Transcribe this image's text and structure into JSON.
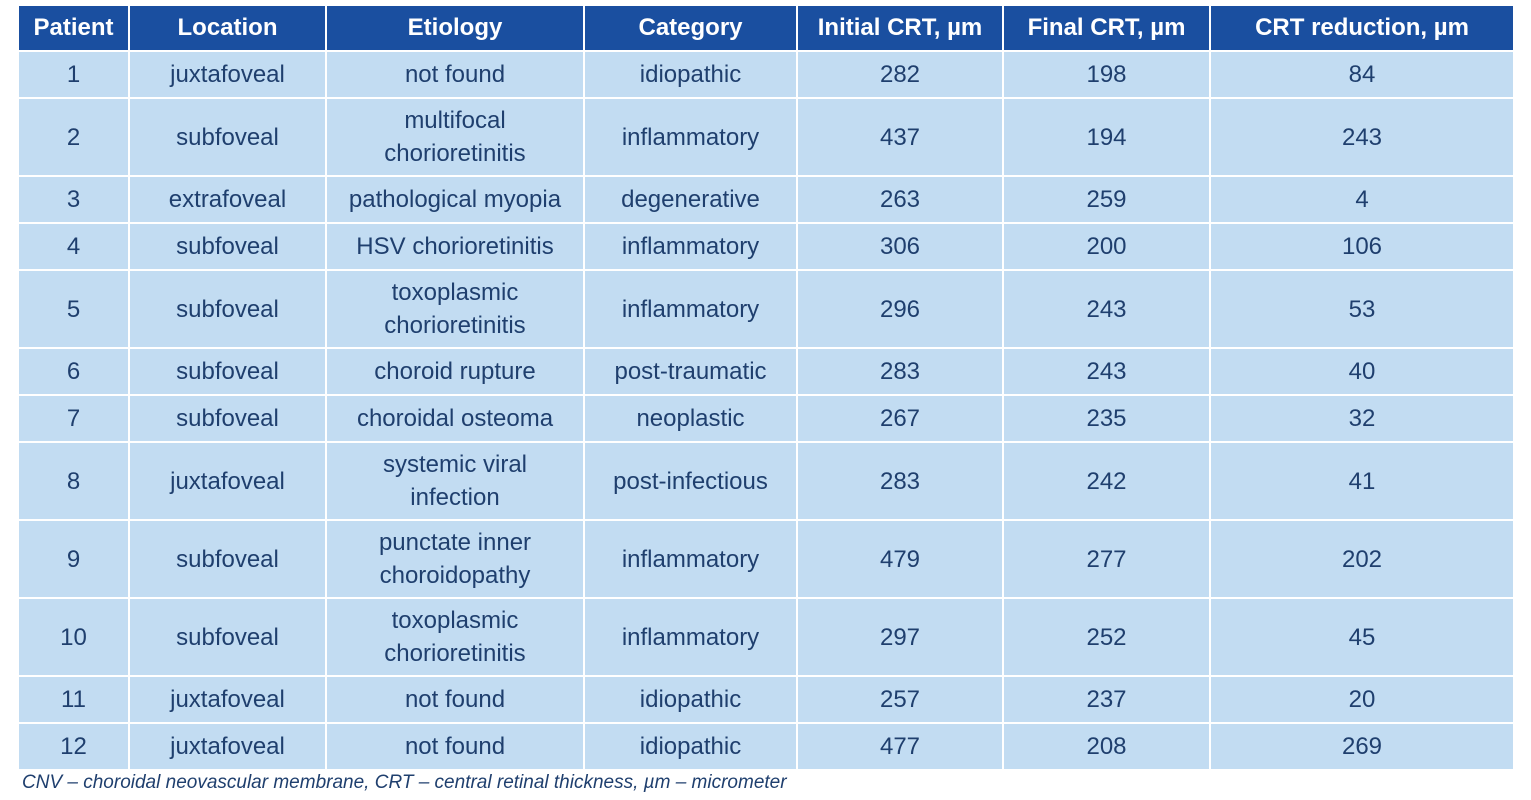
{
  "table": {
    "headers": [
      "Patient",
      "Location",
      "Etiology",
      "Category",
      "Initial CRT, µm",
      "Final CRT, µm",
      "CRT reduction, µm"
    ],
    "rows": [
      {
        "patient": "1",
        "location": "juxtafoveal",
        "etiology": [
          "not found"
        ],
        "category": "idiopathic",
        "initial": "282",
        "final": "198",
        "reduction": "84"
      },
      {
        "patient": "2",
        "location": "subfoveal",
        "etiology": [
          "multifocal",
          "chorioretinitis"
        ],
        "category": "inflammatory",
        "initial": "437",
        "final": "194",
        "reduction": "243"
      },
      {
        "patient": "3",
        "location": "extrafoveal",
        "etiology": [
          "pathological myopia"
        ],
        "category": "degenerative",
        "initial": "263",
        "final": "259",
        "reduction": "4"
      },
      {
        "patient": "4",
        "location": "subfoveal",
        "etiology": [
          "HSV chorioretinitis"
        ],
        "category": "inflammatory",
        "initial": "306",
        "final": "200",
        "reduction": "106"
      },
      {
        "patient": "5",
        "location": "subfoveal",
        "etiology": [
          "toxoplasmic",
          "chorioretinitis"
        ],
        "category": "inflammatory",
        "initial": "296",
        "final": "243",
        "reduction": "53"
      },
      {
        "patient": "6",
        "location": "subfoveal",
        "etiology": [
          "choroid rupture"
        ],
        "category": "post-traumatic",
        "initial": "283",
        "final": "243",
        "reduction": "40"
      },
      {
        "patient": "7",
        "location": "subfoveal",
        "etiology": [
          "choroidal osteoma"
        ],
        "category": "neoplastic",
        "initial": "267",
        "final": "235",
        "reduction": "32"
      },
      {
        "patient": "8",
        "location": "juxtafoveal",
        "etiology": [
          "systemic viral",
          "infection"
        ],
        "category": "post-infectious",
        "initial": "283",
        "final": "242",
        "reduction": "41"
      },
      {
        "patient": "9",
        "location": "subfoveal",
        "etiology": [
          "punctate inner",
          "choroidopathy"
        ],
        "category": "inflammatory",
        "initial": "479",
        "final": "277",
        "reduction": "202"
      },
      {
        "patient": "10",
        "location": "subfoveal",
        "etiology": [
          "toxoplasmic",
          "chorioretinitis"
        ],
        "category": "inflammatory",
        "initial": "297",
        "final": "252",
        "reduction": "45"
      },
      {
        "patient": "11",
        "location": "juxtafoveal",
        "etiology": [
          "not found"
        ],
        "category": "idiopathic",
        "initial": "257",
        "final": "237",
        "reduction": "20"
      },
      {
        "patient": "12",
        "location": "juxtafoveal",
        "etiology": [
          "not found"
        ],
        "category": "idiopathic",
        "initial": "477",
        "final": "208",
        "reduction": "269"
      }
    ]
  },
  "footnote": "CNV – choroidal neovascular membrane, CRT – central retinal thickness, µm – micrometer",
  "colors": {
    "header_bg": "#1a4fa0",
    "header_text": "#ffffff",
    "cell_bg": "#c2dcf2",
    "cell_text": "#1f3f6e"
  }
}
